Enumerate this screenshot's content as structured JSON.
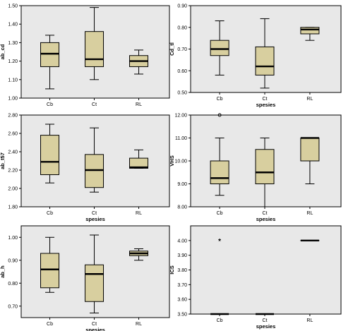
{
  "colors": {
    "plot_bg": "#e8e8e8",
    "box_fill": "#d8cf9f",
    "stroke": "#000000"
  },
  "chart_data": [
    {
      "type": "boxplot",
      "title": "",
      "xlabel": "",
      "ylabel": "ab_cd",
      "ylim": [
        1.0,
        1.5
      ],
      "yticks": [
        "1.00",
        "1.10",
        "1.20",
        "1.30",
        "1.40",
        "1.50"
      ],
      "categories": [
        "Cb",
        "Ct",
        "RL"
      ],
      "boxes": [
        {
          "category": "Cb",
          "min": 1.05,
          "q1": 1.17,
          "median": 1.24,
          "q3": 1.3,
          "max": 1.34,
          "outliers": []
        },
        {
          "category": "Ct",
          "min": 1.1,
          "q1": 1.17,
          "median": 1.21,
          "q3": 1.36,
          "max": 1.49,
          "outliers": []
        },
        {
          "category": "RL",
          "min": 1.13,
          "q1": 1.17,
          "median": 1.2,
          "q3": 1.23,
          "max": 1.26,
          "outliers": []
        }
      ]
    },
    {
      "type": "boxplot",
      "title": "",
      "xlabel": "spesies",
      "ylabel": "Cd_tl",
      "ylim": [
        0.5,
        0.9
      ],
      "yticks": [
        "0.50",
        "0.60",
        "0.70",
        "0.80",
        "0.90"
      ],
      "categories": [
        "Cb",
        "Ct",
        "RL"
      ],
      "boxes": [
        {
          "category": "Cb",
          "min": 0.58,
          "q1": 0.67,
          "median": 0.7,
          "q3": 0.74,
          "max": 0.83,
          "outliers": []
        },
        {
          "category": "Ct",
          "min": 0.52,
          "q1": 0.58,
          "median": 0.62,
          "q3": 0.71,
          "max": 0.84,
          "outliers": []
        },
        {
          "category": "RL",
          "min": 0.74,
          "q1": 0.77,
          "median": 0.79,
          "q3": 0.8,
          "max": 0.8,
          "outliers": []
        }
      ]
    },
    {
      "type": "boxplot",
      "title": "",
      "xlabel": "spesies",
      "ylabel": "ab_t57",
      "ylim": [
        1.8,
        2.8
      ],
      "yticks": [
        "1.80",
        "2.00",
        "2.20",
        "2.40",
        "2.60",
        "2.80"
      ],
      "categories": [
        "Cb",
        "Ct",
        "RL"
      ],
      "boxes": [
        {
          "category": "Cb",
          "min": 2.06,
          "q1": 2.15,
          "median": 2.29,
          "q3": 2.58,
          "max": 2.7,
          "outliers": []
        },
        {
          "category": "Ct",
          "min": 1.96,
          "q1": 2.01,
          "median": 2.2,
          "q3": 2.37,
          "max": 2.66,
          "outliers": []
        },
        {
          "category": "RL",
          "min": 2.22,
          "q1": 2.22,
          "median": 2.23,
          "q3": 2.33,
          "max": 2.42,
          "outliers": []
        }
      ]
    },
    {
      "type": "boxplot",
      "title": "",
      "xlabel": "spesies",
      "ylabel": "VHS",
      "ylim": [
        8.0,
        12.0
      ],
      "yticks": [
        "8.00",
        "9.00",
        "10.00",
        "11.00",
        "12.00"
      ],
      "categories": [
        "Cb",
        "Ct",
        "RL"
      ],
      "boxes": [
        {
          "category": "Cb",
          "min": 8.5,
          "q1": 9.0,
          "median": 9.25,
          "q3": 10.0,
          "max": 11.0,
          "outliers": [
            12.0
          ],
          "outlier_symbol": "circle"
        },
        {
          "category": "Ct",
          "min": 8.0,
          "q1": 9.0,
          "median": 9.5,
          "q3": 10.5,
          "max": 11.0,
          "outliers": []
        },
        {
          "category": "RL",
          "min": 9.0,
          "q1": 10.0,
          "median": 11.0,
          "q3": 11.0,
          "max": 11.0,
          "outliers": []
        }
      ]
    },
    {
      "type": "boxplot",
      "title": "",
      "xlabel": "spesies",
      "ylabel": "ab_h",
      "ylim": [
        0.65,
        1.05
      ],
      "yticks": [
        "0.70",
        "0.80",
        "0.90",
        "1.00"
      ],
      "categories": [
        "Cb",
        "Ct",
        "RL"
      ],
      "boxes": [
        {
          "category": "Cb",
          "min": 0.76,
          "q1": 0.78,
          "median": 0.86,
          "q3": 0.93,
          "max": 1.0,
          "outliers": []
        },
        {
          "category": "Ct",
          "min": 0.67,
          "q1": 0.72,
          "median": 0.84,
          "q3": 0.88,
          "max": 1.01,
          "outliers": []
        },
        {
          "category": "RL",
          "min": 0.9,
          "q1": 0.92,
          "median": 0.93,
          "q3": 0.94,
          "max": 0.95,
          "outliers": []
        }
      ]
    },
    {
      "type": "boxplot",
      "title": "",
      "xlabel": "spesies",
      "ylabel": "ICS",
      "ylim": [
        3.5,
        4.1
      ],
      "yticks": [
        "3.50",
        "3.60",
        "3.70",
        "3.80",
        "3.90",
        "4.00"
      ],
      "categories": [
        "Cb",
        "Ct",
        "RL"
      ],
      "boxes": [
        {
          "category": "Cb",
          "min": 3.5,
          "q1": 3.5,
          "median": 3.5,
          "q3": 3.5,
          "max": 3.5,
          "outliers": [
            4.0
          ],
          "outlier_symbol": "star"
        },
        {
          "category": "Ct",
          "min": 3.5,
          "q1": 3.5,
          "median": 3.5,
          "q3": 3.5,
          "max": 3.5,
          "outliers": []
        },
        {
          "category": "RL",
          "min": 4.0,
          "q1": 4.0,
          "median": 4.0,
          "q3": 4.0,
          "max": 4.0,
          "outliers": []
        }
      ]
    }
  ]
}
